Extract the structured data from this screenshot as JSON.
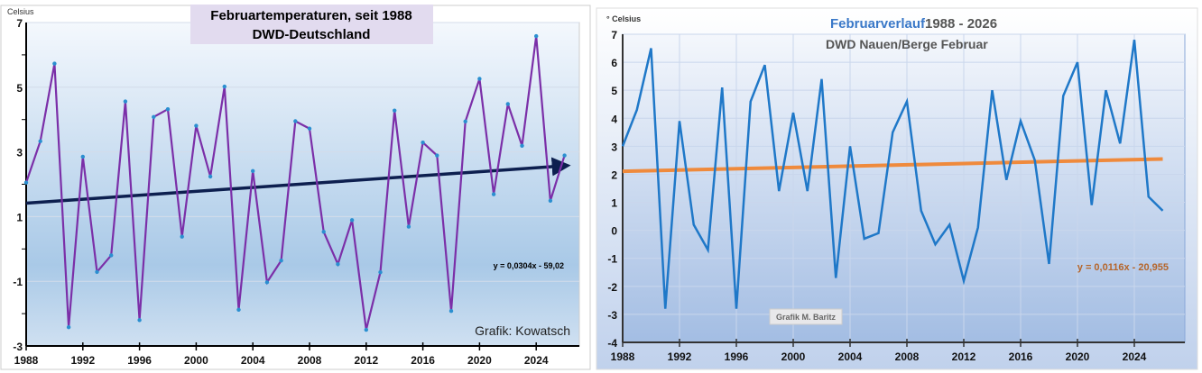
{
  "chart_data": [
    {
      "type": "line",
      "title": "Februartemperaturen,  seit 1988",
      "subtitle": "DWD-Deutschland",
      "ylabel": "Celsius",
      "xlabel": "",
      "ylim": [
        -3,
        7
      ],
      "yticks": [
        "7",
        "5",
        "3",
        "1",
        "-1",
        "-3"
      ],
      "xticks": [
        "1988",
        "1992",
        "1996",
        "2000",
        "2004",
        "2008",
        "2012",
        "2016",
        "2020",
        "2024"
      ],
      "x": [
        1988,
        1989,
        1990,
        1991,
        1992,
        1993,
        1994,
        1995,
        1996,
        1997,
        1998,
        1999,
        2000,
        2001,
        2002,
        2003,
        2004,
        2005,
        2006,
        2007,
        2008,
        2009,
        2010,
        2011,
        2012,
        2013,
        2014,
        2015,
        2016,
        2017,
        2018,
        2019,
        2020,
        2021,
        2022,
        2023,
        2024,
        2025,
        2026
      ],
      "values": [
        2.05,
        3.33,
        5.73,
        -2.42,
        2.85,
        -0.71,
        -0.2,
        4.56,
        -2.2,
        4.08,
        4.32,
        0.38,
        3.81,
        2.24,
        5.02,
        -1.88,
        2.41,
        -1.03,
        -0.36,
        3.95,
        3.72,
        0.53,
        -0.47,
        0.89,
        -2.5,
        -0.72,
        4.28,
        0.69,
        3.29,
        2.89,
        -1.92,
        3.94,
        5.26,
        1.69,
        4.48,
        3.19,
        6.58,
        1.49,
        2.89
      ],
      "trendline": {
        "equation": "y = 0,0304x - 59,02",
        "slope": 0.0304,
        "intercept": -59.02
      },
      "annotation": "Grafik: Kowatsch",
      "grid": true,
      "colors": {
        "line": "#7b2fa8",
        "markers": "#2a8fd0",
        "trend": "#0d1f4f",
        "title_bg": "#e2dbef"
      }
    },
    {
      "type": "line",
      "title_part1": "Februarverlauf",
      "title_part2": " 1988 - 2026",
      "subtitle": "DWD Nauen/Berge Februar",
      "ylabel": "° Celsius",
      "xlabel": "",
      "ylim": [
        -4,
        7
      ],
      "yticks": [
        "7",
        "6",
        "5",
        "4",
        "3",
        "2",
        "1",
        "0",
        "-1",
        "-2",
        "-3",
        "-4"
      ],
      "xticks": [
        "1988",
        "1992",
        "1996",
        "2000",
        "2004",
        "2008",
        "2012",
        "2016",
        "2020",
        "2024"
      ],
      "x": [
        1988,
        1989,
        1990,
        1991,
        1992,
        1993,
        1994,
        1995,
        1996,
        1997,
        1998,
        1999,
        2000,
        2001,
        2002,
        2003,
        2004,
        2005,
        2006,
        2007,
        2008,
        2009,
        2010,
        2011,
        2012,
        2013,
        2014,
        2015,
        2016,
        2017,
        2018,
        2019,
        2020,
        2021,
        2022,
        2023,
        2024,
        2025,
        2026
      ],
      "values": [
        3.0,
        4.3,
        6.5,
        -2.8,
        3.9,
        0.2,
        -0.7,
        5.1,
        -2.8,
        4.6,
        5.9,
        1.4,
        4.2,
        1.4,
        5.4,
        -1.7,
        3.0,
        -0.3,
        -0.1,
        3.5,
        4.6,
        0.7,
        -0.5,
        0.2,
        -1.8,
        0.1,
        5.0,
        1.8,
        3.9,
        2.5,
        -1.2,
        4.8,
        6.0,
        0.9,
        5.0,
        3.1,
        6.8,
        1.2,
        0.7
      ],
      "trendline": {
        "equation": "y = 0,0116x - 20,955",
        "slope": 0.0116,
        "intercept": -20.955
      },
      "annotation": "Grafik M. Baritz",
      "grid": true,
      "colors": {
        "line": "#1f78c8",
        "trend": "#ef8a3c",
        "title_blue": "#3a78c8",
        "title_gray": "#555555",
        "equation": "#b5652a"
      }
    }
  ]
}
